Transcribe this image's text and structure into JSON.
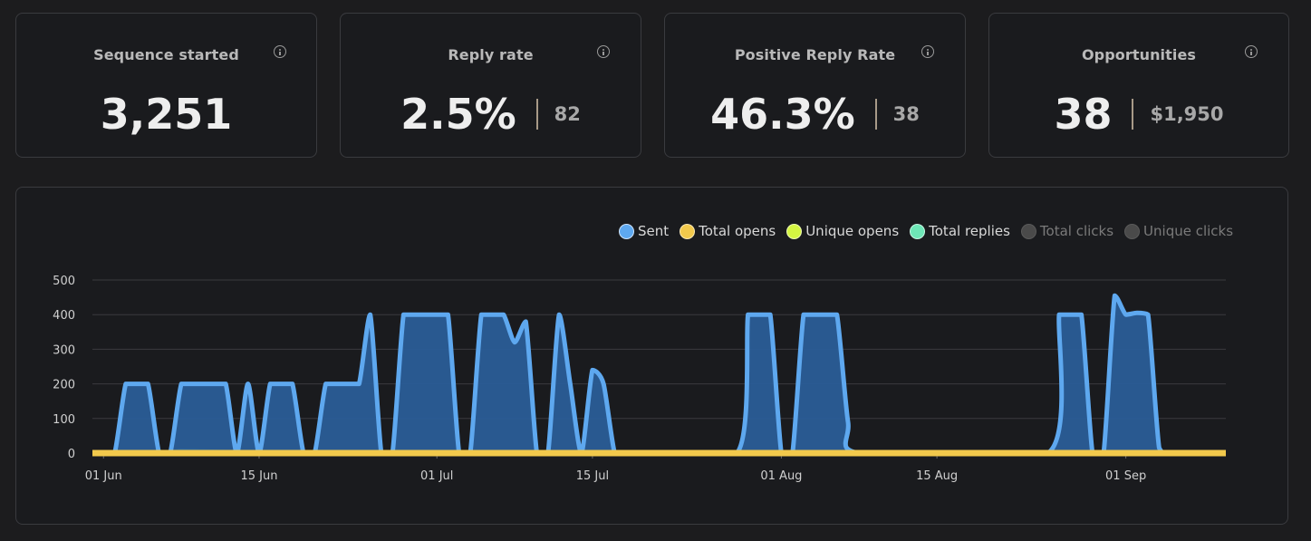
{
  "cards": [
    {
      "title": "Sequence started",
      "value": "3,251",
      "sub": ""
    },
    {
      "title": "Reply rate",
      "value": "2.5%",
      "sub": "82"
    },
    {
      "title": "Positive Reply Rate",
      "value": "46.3%",
      "sub": "38"
    },
    {
      "title": "Opportunities",
      "value": "38",
      "sub": "$1,950"
    }
  ],
  "legend": [
    {
      "label": "Sent",
      "color": "#5ea8ef",
      "active": true
    },
    {
      "label": "Total opens",
      "color": "#f2c94c",
      "active": true
    },
    {
      "label": "Unique opens",
      "color": "#d4f542",
      "active": true
    },
    {
      "label": "Total replies",
      "color": "#6ee7b7",
      "active": true
    },
    {
      "label": "Total clicks",
      "color": "#4a4a4a",
      "active": false
    },
    {
      "label": "Unique clicks",
      "color": "#4a4a4a",
      "active": false
    }
  ],
  "colors": {
    "sent_line": "#5ea8ef",
    "sent_fill": "#2a5d97",
    "opens": "#f2c94c",
    "unique_opens": "#d4f542",
    "replies": "#6ee7b7",
    "grid": "#3a3b3f"
  },
  "chart_data": {
    "type": "area",
    "y_ticks": [
      "0",
      "100",
      "200",
      "300",
      "400",
      "500"
    ],
    "ylim": [
      0,
      500
    ],
    "x_ticks": [
      "01 Jun",
      "15 Jun",
      "01 Jul",
      "15 Jul",
      "01 Aug",
      "15 Aug",
      "01 Sep"
    ],
    "xlim": [
      "2024-05-31",
      "2024-09-10"
    ],
    "series": [
      {
        "name": "Sent",
        "points": [
          [
            "2024-05-31",
            0
          ],
          [
            "2024-06-01",
            0
          ],
          [
            "2024-06-02",
            0
          ],
          [
            "2024-06-03",
            200
          ],
          [
            "2024-06-04",
            200
          ],
          [
            "2024-06-05",
            200
          ],
          [
            "2024-06-06",
            0
          ],
          [
            "2024-06-07",
            0
          ],
          [
            "2024-06-08",
            200
          ],
          [
            "2024-06-09",
            200
          ],
          [
            "2024-06-10",
            200
          ],
          [
            "2024-06-11",
            200
          ],
          [
            "2024-06-12",
            200
          ],
          [
            "2024-06-13",
            0
          ],
          [
            "2024-06-14",
            200
          ],
          [
            "2024-06-15",
            0
          ],
          [
            "2024-06-16",
            200
          ],
          [
            "2024-06-17",
            200
          ],
          [
            "2024-06-18",
            200
          ],
          [
            "2024-06-19",
            0
          ],
          [
            "2024-06-20",
            0
          ],
          [
            "2024-06-21",
            200
          ],
          [
            "2024-06-22",
            200
          ],
          [
            "2024-06-23",
            200
          ],
          [
            "2024-06-24",
            200
          ],
          [
            "2024-06-25",
            400
          ],
          [
            "2024-06-26",
            0
          ],
          [
            "2024-06-27",
            0
          ],
          [
            "2024-06-28",
            400
          ],
          [
            "2024-06-29",
            400
          ],
          [
            "2024-06-30",
            400
          ],
          [
            "2024-07-01",
            400
          ],
          [
            "2024-07-02",
            400
          ],
          [
            "2024-07-03",
            0
          ],
          [
            "2024-07-04",
            0
          ],
          [
            "2024-07-05",
            400
          ],
          [
            "2024-07-06",
            400
          ],
          [
            "2024-07-07",
            400
          ],
          [
            "2024-07-08",
            320
          ],
          [
            "2024-07-09",
            380
          ],
          [
            "2024-07-10",
            0
          ],
          [
            "2024-07-11",
            0
          ],
          [
            "2024-07-12",
            400
          ],
          [
            "2024-07-13",
            200
          ],
          [
            "2024-07-14",
            0
          ],
          [
            "2024-07-15",
            240
          ],
          [
            "2024-07-16",
            200
          ],
          [
            "2024-07-17",
            0
          ],
          [
            "2024-07-18",
            0
          ],
          [
            "2024-07-28",
            0
          ],
          [
            "2024-07-29",
            400
          ],
          [
            "2024-07-30",
            400
          ],
          [
            "2024-07-31",
            400
          ],
          [
            "2024-08-01",
            0
          ],
          [
            "2024-08-02",
            0
          ],
          [
            "2024-08-03",
            400
          ],
          [
            "2024-08-04",
            400
          ],
          [
            "2024-08-05",
            400
          ],
          [
            "2024-08-06",
            400
          ],
          [
            "2024-08-07",
            90
          ],
          [
            "2024-08-08",
            0
          ],
          [
            "2024-08-25",
            0
          ],
          [
            "2024-08-26",
            400
          ],
          [
            "2024-08-27",
            400
          ],
          [
            "2024-08-28",
            400
          ],
          [
            "2024-08-29",
            0
          ],
          [
            "2024-08-30",
            0
          ],
          [
            "2024-08-31",
            455
          ],
          [
            "2024-09-01",
            400
          ],
          [
            "2024-09-02",
            405
          ],
          [
            "2024-09-03",
            400
          ],
          [
            "2024-09-04",
            15
          ],
          [
            "2024-09-05",
            0
          ],
          [
            "2024-09-10",
            0
          ]
        ]
      },
      {
        "name": "Total opens",
        "points": [
          [
            "2024-05-31",
            0
          ],
          [
            "2024-09-10",
            0
          ]
        ]
      },
      {
        "name": "Unique opens",
        "points": [
          [
            "2024-05-31",
            0
          ],
          [
            "2024-09-10",
            0
          ]
        ]
      },
      {
        "name": "Total replies",
        "points": [
          [
            "2024-05-31",
            0
          ],
          [
            "2024-06-02",
            0
          ],
          [
            "2024-06-03",
            3
          ],
          [
            "2024-06-05",
            3
          ],
          [
            "2024-06-07",
            3
          ],
          [
            "2024-06-08",
            8
          ],
          [
            "2024-06-10",
            6
          ],
          [
            "2024-06-12",
            4
          ],
          [
            "2024-06-14",
            3
          ],
          [
            "2024-06-17",
            2
          ],
          [
            "2024-06-21",
            3
          ],
          [
            "2024-06-25",
            4
          ],
          [
            "2024-06-29",
            3
          ],
          [
            "2024-07-02",
            2
          ],
          [
            "2024-07-06",
            3
          ],
          [
            "2024-07-09",
            2
          ],
          [
            "2024-07-15",
            2
          ],
          [
            "2024-07-18",
            0
          ],
          [
            "2024-07-29",
            3
          ],
          [
            "2024-08-04",
            4
          ],
          [
            "2024-08-08",
            0
          ],
          [
            "2024-08-26",
            4
          ],
          [
            "2024-09-01",
            3
          ],
          [
            "2024-09-04",
            0
          ],
          [
            "2024-09-10",
            0
          ]
        ]
      }
    ]
  }
}
